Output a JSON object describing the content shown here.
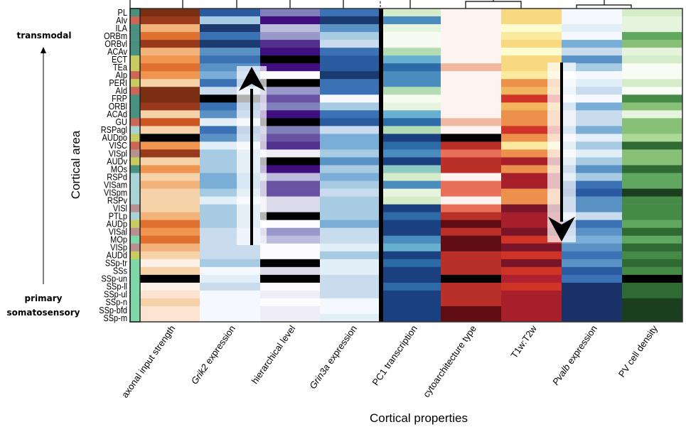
{
  "chart_data": {
    "type": "heatmap",
    "xlabel": "Cortical properties",
    "ylabel": "Cortical area",
    "annotations": {
      "top": "transmodal",
      "bottom": "primary somatosensory"
    },
    "rows": [
      "PL",
      "AIv",
      "ILA",
      "ORBm",
      "ORBvl",
      "ACAv",
      "ECT",
      "TEa",
      "AIp",
      "PERI",
      "AId",
      "FRP",
      "ORBl",
      "ACAd",
      "GU",
      "RSPagl",
      "AUDpo",
      "VISC",
      "VISpl",
      "AUDv",
      "MOs",
      "RSPd",
      "VISam",
      "VISpm",
      "RSPv",
      "VISl",
      "PTLp",
      "AUDp",
      "VISal",
      "MOp",
      "VISp",
      "AUDd",
      "SSp-tr",
      "SSs",
      "SSp-un",
      "SSp-ll",
      "SSp-ul",
      "SSp-n",
      "SSp-bfd",
      "SSp-m"
    ],
    "module_colors": [
      "#4a9080",
      "#cc6655",
      "#4a9080",
      "#4a9080",
      "#4a9080",
      "#4a9080",
      "#c8cc60",
      "#c8cc60",
      "#cc6655",
      "#c8cc60",
      "#cc6655",
      "#4a9080",
      "#4a9080",
      "#4a9080",
      "#cc6655",
      "#a8d4d4",
      "#c8cc60",
      "#cc6655",
      "#b89090",
      "#c8cc60",
      "#4a9080",
      "#a8d4d4",
      "#a8d4d4",
      "#a8d4d4",
      "#a8d4d4",
      "#b89090",
      "#a8d4d4",
      "#c8cc60",
      "#b89090",
      "#80d8a8",
      "#b89090",
      "#c8cc60",
      "#80d8a8",
      "#80d8a8",
      "#80d8a8",
      "#80d8a8",
      "#80d8a8",
      "#80d8a8",
      "#80d8a8",
      "#80d8a8"
    ],
    "columns": [
      {
        "label": "axonal input strength",
        "italic": false,
        "colors": [
          "#7a2e12",
          "#97391a",
          "#f2b27a",
          "#e07030",
          "#97391a",
          "#f2b27a",
          "#f09550",
          "#e07030",
          "#f09550",
          "#f5d2a8",
          "#7a2e12",
          "#7a2e12",
          "#97391a",
          "#f5d2a8",
          "#cc5522",
          "#f5d2a8",
          "#000000",
          "#f09550",
          "#97391a",
          "#f5d2a8",
          "#f09550",
          "#f5d2a8",
          "#f2b27a",
          "#f5d2a8",
          "#f5d2a8",
          "#f5d2a8",
          "#f2b27a",
          "#e07030",
          "#f09550",
          "#e07030",
          "#f2b27a",
          "#f5d2a8",
          "#fdf0e6",
          "#f5d2a8",
          "#000000",
          "#fdf0e6",
          "#fce4d0",
          "#f5d2a8",
          "#fce4d0",
          "#fce4d0"
        ]
      },
      {
        "label": "Grik2",
        "suffix": " expression",
        "italic": true,
        "colors": [
          "#2a5aa0",
          "#a6cbe2",
          "#1a3a70",
          "#3a72b5",
          "#1a3a70",
          "#5a92c5",
          "#3a72b5",
          "#5a92c5",
          "#7aaed6",
          "#3a72b5",
          "#c8dcee",
          "#000000",
          "#3a72b5",
          "#5a92c5",
          "#e2eef8",
          "#3a72b5",
          "#5a92c5",
          "#e2eef8",
          "#a6cbe2",
          "#a6cbe2",
          "#a6cbe2",
          "#7aaed6",
          "#7aaed6",
          "#a6cbe2",
          "#e2eef8",
          "#a6cbe2",
          "#a6cbe2",
          "#a6cbe2",
          "#c8dcee",
          "#c8dcee",
          "#c8dcee",
          "#c8dcee",
          "#a6cbe2",
          "#f5f9fd",
          "#e2eef8",
          "#c8dcee",
          "#f5f9fd",
          "#f5f9fd",
          "#f5f9fd",
          "#f5f9fd"
        ]
      },
      {
        "label": "hierarchical level",
        "italic": false,
        "colors": [
          "#8080bb",
          "#3f0f80",
          "#bcbcdc",
          "#9a98c8",
          "#52308e",
          "#3f0f80",
          "#000000",
          "#3f0f80",
          "#fcfbfd",
          "#000000",
          "#9a98c8",
          "#6a52a3",
          "#8080bb",
          "#3f0f80",
          "#000000",
          "#8080bb",
          "#6a52a3",
          "#52308e",
          "#efedf5",
          "#000000",
          "#3f0f80",
          "#bcbcdc",
          "#6a52a3",
          "#6a52a3",
          "#dadaeb",
          "#dadaeb",
          "#000000",
          "#fcfbfd",
          "#9a98c8",
          "#bcbcdc",
          "#fcfbfd",
          "#fcfbfd",
          "#000000",
          "#dadaeb",
          "#000000",
          "#fcfbfd",
          "#efedf5",
          "#fcfbfd",
          "#efedf5",
          "#efedf5"
        ]
      },
      {
        "label": "Grin3a",
        "suffix": " expression",
        "italic": true,
        "colors": [
          "#3a72b5",
          "#1a3a70",
          "#5a92c5",
          "#a6cbe2",
          "#c8dcee",
          "#3a72b5",
          "#2a5aa0",
          "#2a5aa0",
          "#1a3a70",
          "#3a72b5",
          "#3a72b5",
          "#f5f9fd",
          "#a6cbe2",
          "#3a72b5",
          "#2a5aa0",
          "#c8dcee",
          "#7aaed6",
          "#7aaed6",
          "#a6cbe2",
          "#5a92c5",
          "#a6cbe2",
          "#7aaed6",
          "#a6cbe2",
          "#c8dcee",
          "#a6cbe2",
          "#a6cbe2",
          "#a6cbe2",
          "#7aaed6",
          "#c8dcee",
          "#c8dcee",
          "#e2eef8",
          "#a6cbe2",
          "#e2eef8",
          "#e2eef8",
          "#c8dcee",
          "#c8dcee",
          "#c8dcee",
          "#f5f9fd",
          "#f5f9fd",
          "#e2eef8"
        ]
      },
      {
        "label": "PC1 transcription",
        "italic": false,
        "colors": [
          "#d4ecc8",
          "#4a8cbe",
          "#e6f4de",
          "#f7fcf0",
          "#f7fcf0",
          "#b4dcb4",
          "#68b0d0",
          "#2c6aa8",
          "#4a8cbe",
          "#4a8cbe",
          "#b4dcb4",
          "#f7fcf0",
          "#e6f4de",
          "#68b0d0",
          "#2c6aa8",
          "#b4dcb4",
          "#1a4080",
          "#2c6aa8",
          "#4a8cbe",
          "#1a4080",
          "#8ecac4",
          "#d4ecc8",
          "#4a8cbe",
          "#e6f4de",
          "#d4ecc8",
          "#1a4080",
          "#2c6aa8",
          "#1a4080",
          "#1a4080",
          "#4a8cbe",
          "#68b0d0",
          "#1a4080",
          "#2c6aa8",
          "#1a4080",
          "#1a4080",
          "#2c6aa8",
          "#1a4080",
          "#1a4080",
          "#1a4080",
          "#1a4080"
        ]
      },
      {
        "label": "cytoarchitecture type",
        "italic": false,
        "colors": [
          "#fdf3f0",
          "#fdf3f0",
          "#fdf3f0",
          "#fdf3f0",
          "#fdf3f0",
          "#fdf3f0",
          "#fdf3f0",
          "#f0b8a0",
          "#fdf3f0",
          "#fdf3f0",
          "#fdf3f0",
          "#fdf3f0",
          "#fdf3f0",
          "#fdf3f0",
          "#f0b8a0",
          "#fdf3f0",
          "#000000",
          "#b83028",
          "#e87058",
          "#b83028",
          "#b83028",
          "#fdf3f0",
          "#e87058",
          "#e87058",
          "#fdf3f0",
          "#e87058",
          "#b83028",
          "#600e14",
          "#b83028",
          "#600e14",
          "#600e14",
          "#b83028",
          "#b83028",
          "#b83028",
          "#000000",
          "#b83028",
          "#b83028",
          "#b83028",
          "#600e14",
          "#600e14"
        ]
      },
      {
        "label": "T1w:T2w",
        "italic": false,
        "colors": [
          "#f8d880",
          "#f8d880",
          "#fffcd0",
          "#fce9a0",
          "#f8d880",
          "#fffcd0",
          "#f8d880",
          "#f8d880",
          "#fce9a0",
          "#ec904c",
          "#f2b45c",
          "#d03328",
          "#f2b45c",
          "#ec904c",
          "#ec904c",
          "#d03328",
          "#ec904c",
          "#fce9a0",
          "#ec904c",
          "#a81f2c",
          "#ec904c",
          "#a81f2c",
          "#a81f2c",
          "#ec904c",
          "#ec904c",
          "#7a1428",
          "#a81f2c",
          "#a81f2c",
          "#7a1428",
          "#d03328",
          "#7a1428",
          "#d03328",
          "#7a1428",
          "#d03328",
          "#b02030",
          "#d03328",
          "#a81f2c",
          "#a81f2c",
          "#a81f2c",
          "#a81f2c"
        ]
      },
      {
        "label": "Pvalb",
        "suffix": " expression",
        "italic": true,
        "colors": [
          "#f5f9fd",
          "#f5f9fd",
          "#e2eef8",
          "#f5f9fd",
          "#7aaed6",
          "#c8dcee",
          "#5a92c5",
          "#a6cbe2",
          "#f5f9fd",
          "#e2eef8",
          "#c8dcee",
          "#f5f9fd",
          "#7aaed6",
          "#c8dcee",
          "#c8dcee",
          "#7aaed6",
          "#e2eef8",
          "#a6cbe2",
          "#e2eef8",
          "#a6cbe2",
          "#5a92c5",
          "#a6cbe2",
          "#3a72b5",
          "#2a5aa0",
          "#5a92c5",
          "#5a92c5",
          "#c8dcee",
          "#3a72b5",
          "#5a92c5",
          "#7aaed6",
          "#5a92c5",
          "#3a72b5",
          "#5a92c5",
          "#2a5aa0",
          "#3a72b5",
          "#1a3268",
          "#1a3268",
          "#1a3268",
          "#1a3268",
          "#1a3268"
        ]
      },
      {
        "label": "PV cell density",
        "italic": false,
        "colors": [
          "#d4ecc8",
          "#e6f4de",
          "#e6f4de",
          "#60a860",
          "#88c078",
          "#e6f4de",
          "#d4ecc8",
          "#f7fcf5",
          "#f7fcf5",
          "#d4ecc8",
          "#f7fcf5",
          "#468a48",
          "#88c078",
          "#e6f4de",
          "#88c078",
          "#88c078",
          "#acd898",
          "#2e6a32",
          "#88c078",
          "#88c078",
          "#2e6a32",
          "#60a860",
          "#60a860",
          "#1a3e1e",
          "#468a48",
          "#468a48",
          "#468a48",
          "#60a860",
          "#2e6a32",
          "#60a860",
          "#2e6a32",
          "#468a48",
          "#2e6a32",
          "#468a48",
          "#000000",
          "#2e6a32",
          "#2e6a32",
          "#1a3e1e",
          "#1a3e1e",
          "#1a3e1e"
        ]
      }
    ],
    "arrows": [
      {
        "direction": "up",
        "between_columns": [
          "Grik2 expression",
          "hierarchical level"
        ]
      },
      {
        "direction": "down",
        "between_columns": [
          "T1w:T2w",
          "Pvalb expression"
        ]
      }
    ]
  }
}
